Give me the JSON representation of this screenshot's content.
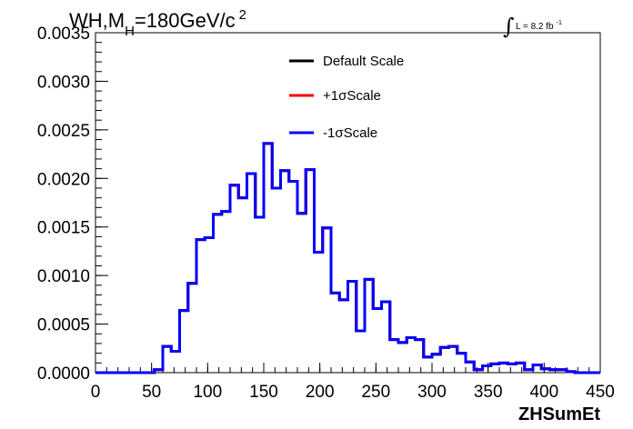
{
  "chart_data": {
    "type": "line",
    "title_main": "WH,M",
    "title_sub": "H",
    "title_rest": "=180GeV/c",
    "title_sup": "2",
    "lumi_label": "L = 8.2 fb",
    "lumi_sup": "-1",
    "xlabel": "ZHSumEt",
    "ylabel": "",
    "xlim": [
      0,
      450
    ],
    "ylim": [
      0,
      0.0035
    ],
    "grid": false,
    "legend_position": "top-center",
    "x_ticks": [
      "0",
      "50",
      "100",
      "150",
      "200",
      "250",
      "300",
      "350",
      "400",
      "450"
    ],
    "y_ticks": [
      "0.0000",
      "0.0005",
      "0.0010",
      "0.0015",
      "0.0020",
      "0.0025",
      "0.0030",
      "0.0035"
    ],
    "bin_edges": [
      0,
      7.5,
      15,
      22.5,
      30,
      37.5,
      45,
      52.5,
      60,
      67.5,
      75,
      82.5,
      90,
      97.5,
      105,
      112.5,
      120,
      127.5,
      135,
      142.5,
      150,
      157.5,
      165,
      172.5,
      180,
      187.5,
      195,
      202.5,
      210,
      217.5,
      225,
      232.5,
      240,
      247.5,
      255,
      262.5,
      270,
      277.5,
      285,
      292.5,
      300,
      307.5,
      315,
      322.5,
      330,
      337.5,
      345,
      352.5,
      360,
      367.5,
      375,
      382.5,
      390,
      397.5,
      405,
      412.5,
      420,
      427.5,
      435,
      442.5,
      450
    ],
    "series": [
      {
        "name": "Default Scale",
        "color": "#000000",
        "values": [
          0,
          0,
          0,
          0,
          0,
          0,
          0,
          3e-05,
          0.00027,
          0.00022,
          0.00064,
          0.00092,
          0.00137,
          0.00139,
          0.00163,
          0.00166,
          0.00193,
          0.0018,
          0.00205,
          0.0016,
          0.00236,
          0.0019,
          0.00208,
          0.00197,
          0.00164,
          0.00209,
          0.00124,
          0.00149,
          0.00082,
          0.00075,
          0.00094,
          0.00043,
          0.00096,
          0.00066,
          0.00073,
          0.00034,
          0.00031,
          0.00036,
          0.00034,
          0.00016,
          0.00019,
          0.00026,
          0.00027,
          0.0002,
          0.00011,
          3e-05,
          7e-05,
          9e-05,
          0.0001,
          9e-05,
          0.0001,
          3e-05,
          8e-05,
          4e-05,
          3e-05,
          3e-05,
          1e-05,
          0,
          0,
          0
        ]
      },
      {
        "name": "+1σScale",
        "color": "#ff0000",
        "values": [
          0,
          0,
          0,
          0,
          0,
          0,
          0,
          3e-05,
          0.00027,
          0.00022,
          0.00064,
          0.00092,
          0.00137,
          0.00139,
          0.00163,
          0.00166,
          0.00193,
          0.0018,
          0.00205,
          0.0016,
          0.00236,
          0.0019,
          0.00208,
          0.00197,
          0.00164,
          0.00209,
          0.00124,
          0.00149,
          0.00082,
          0.00075,
          0.00094,
          0.00043,
          0.00096,
          0.00066,
          0.00073,
          0.00034,
          0.00031,
          0.00036,
          0.00034,
          0.00016,
          0.00019,
          0.00026,
          0.00027,
          0.0002,
          0.00011,
          3e-05,
          7e-05,
          9e-05,
          0.0001,
          9e-05,
          0.0001,
          3e-05,
          8e-05,
          4e-05,
          3e-05,
          3e-05,
          1e-05,
          0,
          0,
          0
        ]
      },
      {
        "name": "-1σScale",
        "color": "#0000ff",
        "values": [
          0,
          0,
          0,
          0,
          0,
          0,
          0,
          3e-05,
          0.00027,
          0.00022,
          0.00064,
          0.00092,
          0.00137,
          0.00139,
          0.00163,
          0.00166,
          0.00193,
          0.0018,
          0.00205,
          0.0016,
          0.00236,
          0.0019,
          0.00208,
          0.00197,
          0.00164,
          0.00209,
          0.00124,
          0.00149,
          0.00082,
          0.00075,
          0.00094,
          0.00043,
          0.00096,
          0.00066,
          0.00073,
          0.00034,
          0.00031,
          0.00036,
          0.00034,
          0.00016,
          0.00019,
          0.00026,
          0.00027,
          0.0002,
          0.00011,
          3e-05,
          7e-05,
          9e-05,
          0.0001,
          9e-05,
          0.0001,
          3e-05,
          8e-05,
          4e-05,
          3e-05,
          3e-05,
          1e-05,
          0,
          0,
          0
        ]
      }
    ]
  }
}
